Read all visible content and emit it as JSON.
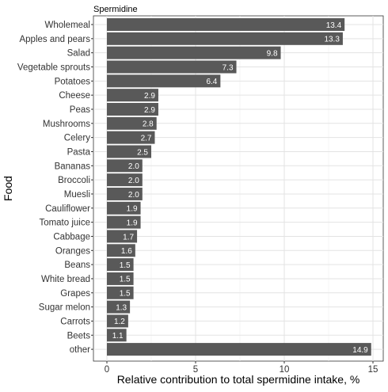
{
  "chart_data": {
    "type": "bar",
    "orientation": "horizontal",
    "title": "Spermidine",
    "xlabel": "Relative contribution to total spermidine intake, %",
    "ylabel": "Food",
    "xlim": [
      0,
      15.6
    ],
    "xticks": [
      0,
      5,
      10,
      15
    ],
    "grid": true,
    "bar_color": "#595959",
    "categories": [
      "Wholemeal",
      "Apples and pears",
      "Salad",
      "Vegetable sprouts",
      "Potatoes",
      "Cheese",
      "Peas",
      "Mushrooms",
      "Celery",
      "Pasta",
      "Bananas",
      "Broccoli",
      "Muesli",
      "Cauliflower",
      "Tomato juice",
      "Cabbage",
      "Oranges",
      "Beans",
      "White bread",
      "Grapes",
      "Sugar melon",
      "Carrots",
      "Beets",
      "other"
    ],
    "values": [
      13.4,
      13.3,
      9.8,
      7.3,
      6.4,
      2.9,
      2.9,
      2.8,
      2.7,
      2.5,
      2.0,
      2.0,
      2.0,
      1.9,
      1.9,
      1.7,
      1.6,
      1.5,
      1.5,
      1.5,
      1.3,
      1.2,
      1.1,
      14.9
    ],
    "value_labels": [
      "13.4",
      "13.3",
      "9.8",
      "7.3",
      "6.4",
      "2.9",
      "2.9",
      "2.8",
      "2.7",
      "2.5",
      "2.0",
      "2.0",
      "2.0",
      "1.9",
      "1.9",
      "1.7",
      "1.6",
      "1.5",
      "1.5",
      "1.5",
      "1.3",
      "1.2",
      "1.1",
      "14.9"
    ]
  }
}
